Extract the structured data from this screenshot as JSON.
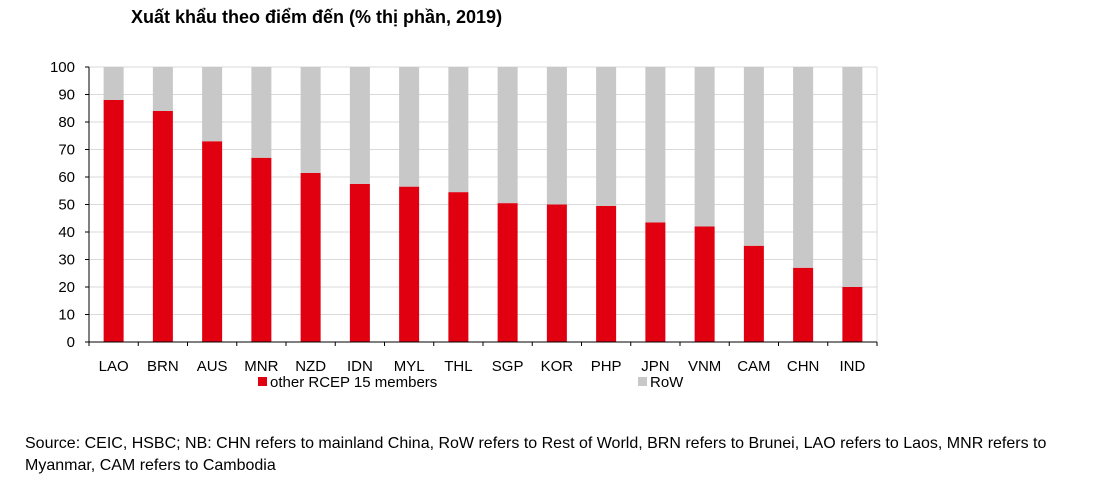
{
  "chart_data": {
    "type": "bar",
    "stacked": true,
    "title": "Xuất khẩu theo điểm đến (% thị phần, 2019)",
    "categories": [
      "LAO",
      "BRN",
      "AUS",
      "MNR",
      "NZD",
      "IDN",
      "MYL",
      "THL",
      "SGP",
      "KOR",
      "PHP",
      "JPN",
      "VNM",
      "CAM",
      "CHN",
      "IND"
    ],
    "series": [
      {
        "name": "other RCEP 15 members",
        "color": "#e10010",
        "values": [
          88,
          84,
          73,
          67,
          61.5,
          57.5,
          56.5,
          54.5,
          50.5,
          50,
          49.5,
          43.5,
          42,
          35,
          27,
          20
        ]
      },
      {
        "name": "RoW",
        "color": "#c8c8c8",
        "values": [
          12,
          16,
          27,
          33,
          38.5,
          42.5,
          43.5,
          45.5,
          49.5,
          50,
          50.5,
          56.5,
          58,
          65,
          73,
          80
        ]
      }
    ],
    "ylim": [
      0,
      100
    ],
    "yticks": [
      0,
      10,
      20,
      30,
      40,
      50,
      60,
      70,
      80,
      90,
      100
    ],
    "xlabel": "",
    "ylabel": "",
    "grid": true,
    "legend_position": "bottom"
  },
  "source_note": "Source: CEIC, HSBC; NB: CHN refers to mainland China, RoW refers to Rest of World, BRN refers to Brunei, LAO refers to Laos, MNR refers to Myanmar, CAM refers to Cambodia"
}
